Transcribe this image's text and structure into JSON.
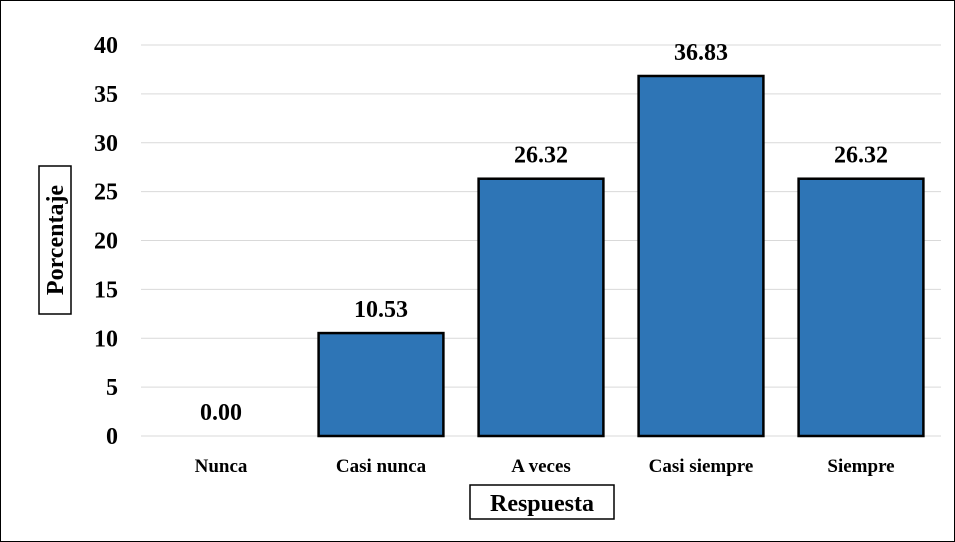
{
  "chart_data": {
    "type": "bar",
    "categories": [
      "Nunca",
      "Casi nunca",
      "A veces",
      "Casi siempre",
      "Siempre"
    ],
    "values": [
      0.0,
      10.53,
      26.32,
      36.83,
      26.32
    ],
    "data_labels": [
      "0.00",
      "10.53",
      "26.32",
      "36.83",
      "26.32"
    ],
    "xlabel": "Respuesta",
    "ylabel": "Porcentaje",
    "ylim": [
      0,
      40
    ],
    "yticks": [
      "0",
      "5",
      "10",
      "15",
      "20",
      "25",
      "30",
      "35",
      "40"
    ],
    "grid": true,
    "bar_color": "#2e75b6",
    "bar_edge_color": "#000000"
  }
}
